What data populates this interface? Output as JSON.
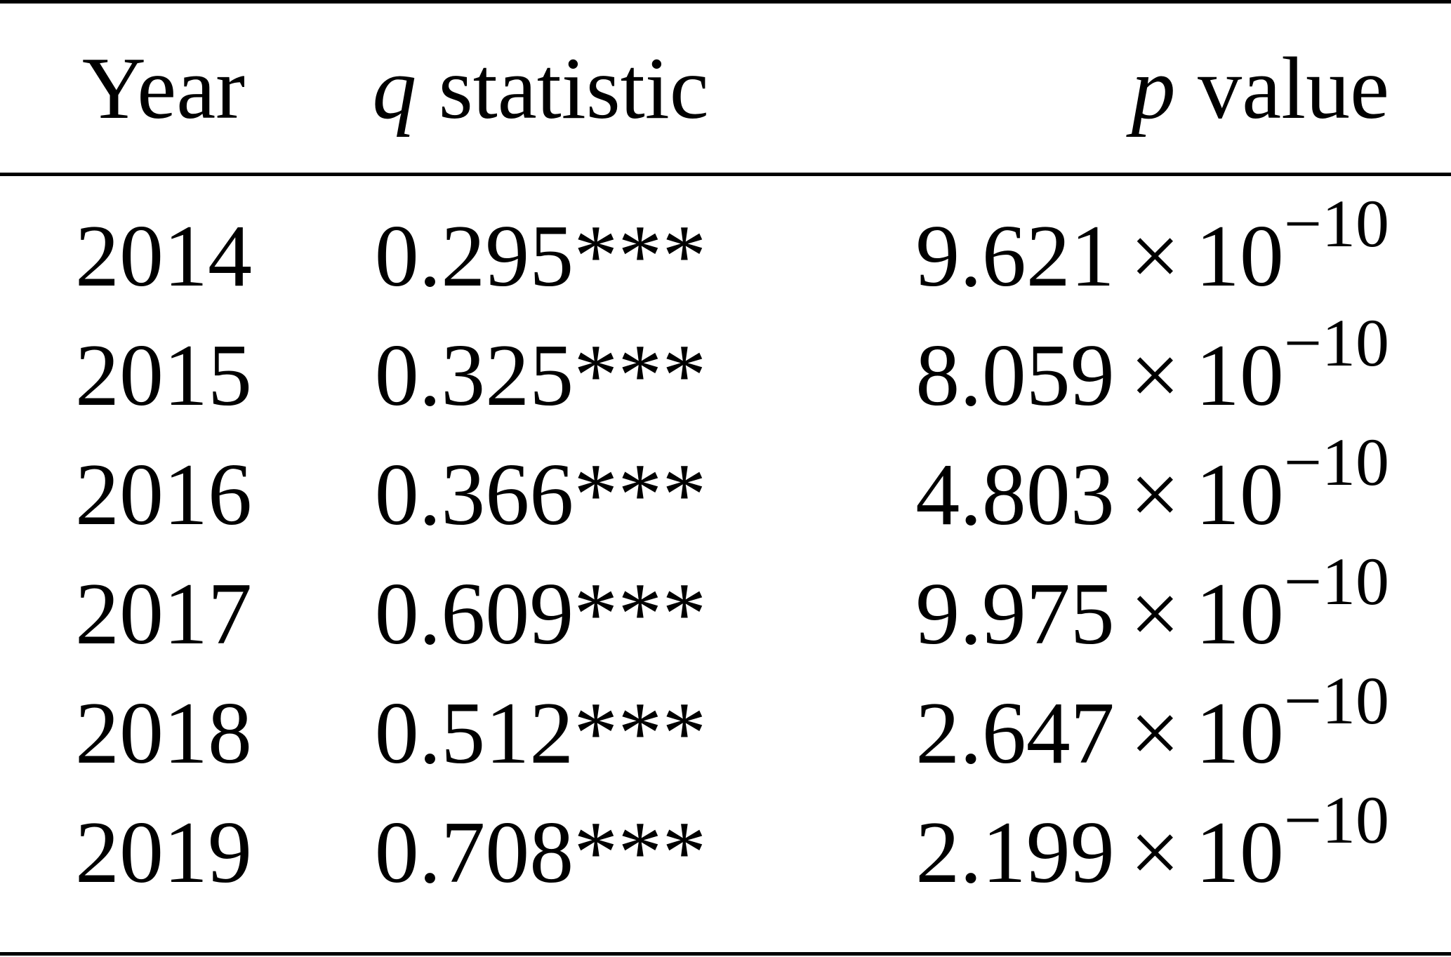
{
  "table": {
    "headers": {
      "year": "Year",
      "q_symbol": "q",
      "q_text": "statistic",
      "p_symbol": "p",
      "p_text": "value"
    },
    "rows": [
      {
        "year": "2014",
        "q": "0.295***",
        "p_mantissa": "9.621",
        "p_times": "×",
        "p_base": "10",
        "p_exponent": "−10"
      },
      {
        "year": "2015",
        "q": "0.325***",
        "p_mantissa": "8.059",
        "p_times": "×",
        "p_base": "10",
        "p_exponent": "−10"
      },
      {
        "year": "2016",
        "q": "0.366***",
        "p_mantissa": "4.803",
        "p_times": "×",
        "p_base": "10",
        "p_exponent": "−10"
      },
      {
        "year": "2017",
        "q": "0.609***",
        "p_mantissa": "9.975",
        "p_times": "×",
        "p_base": "10",
        "p_exponent": "−10"
      },
      {
        "year": "2018",
        "q": "0.512***",
        "p_mantissa": "2.647",
        "p_times": "×",
        "p_base": "10",
        "p_exponent": "−10"
      },
      {
        "year": "2019",
        "q": "0.708***",
        "p_mantissa": "2.199",
        "p_times": "×",
        "p_base": "10",
        "p_exponent": "−10"
      }
    ]
  },
  "colors": {
    "text": "#000000",
    "background": "#ffffff"
  }
}
